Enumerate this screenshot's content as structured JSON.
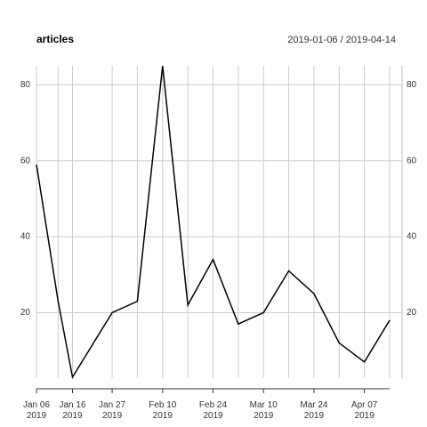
{
  "chart_data": {
    "type": "line",
    "title": "articles",
    "subtitle": "2019-01-06 / 2019-04-14",
    "x": [
      "2019-01-06",
      "2019-01-12",
      "2019-01-16",
      "2019-01-27",
      "2019-02-03",
      "2019-02-10",
      "2019-02-17",
      "2019-02-24",
      "2019-03-03",
      "2019-03-10",
      "2019-03-17",
      "2019-03-24",
      "2019-03-31",
      "2019-04-07",
      "2019-04-14"
    ],
    "series": [
      {
        "name": "articles",
        "color": "#000000",
        "values": [
          59,
          23,
          3,
          20,
          23,
          85,
          22,
          34,
          17,
          20,
          31,
          25,
          12,
          7,
          18
        ]
      }
    ],
    "xlim": [
      "2019-01-06",
      "2019-04-14"
    ],
    "xticks": [
      {
        "value": "2019-01-06",
        "label": "Jan 06\n2019"
      },
      {
        "value": "2019-01-16",
        "label": "Jan 16\n2019"
      },
      {
        "value": "2019-01-27",
        "label": "Jan 27\n2019"
      },
      {
        "value": "2019-02-10",
        "label": "Feb 10\n2019"
      },
      {
        "value": "2019-02-24",
        "label": "Feb 24\n2019"
      },
      {
        "value": "2019-03-10",
        "label": "Mar 10\n2019"
      },
      {
        "value": "2019-03-24",
        "label": "Mar 24\n2019"
      },
      {
        "value": "2019-04-07",
        "label": "Apr 07\n2019"
      }
    ],
    "ylim": [
      3,
      85
    ],
    "yticks": [
      20,
      40,
      60,
      80
    ],
    "grid": true
  }
}
